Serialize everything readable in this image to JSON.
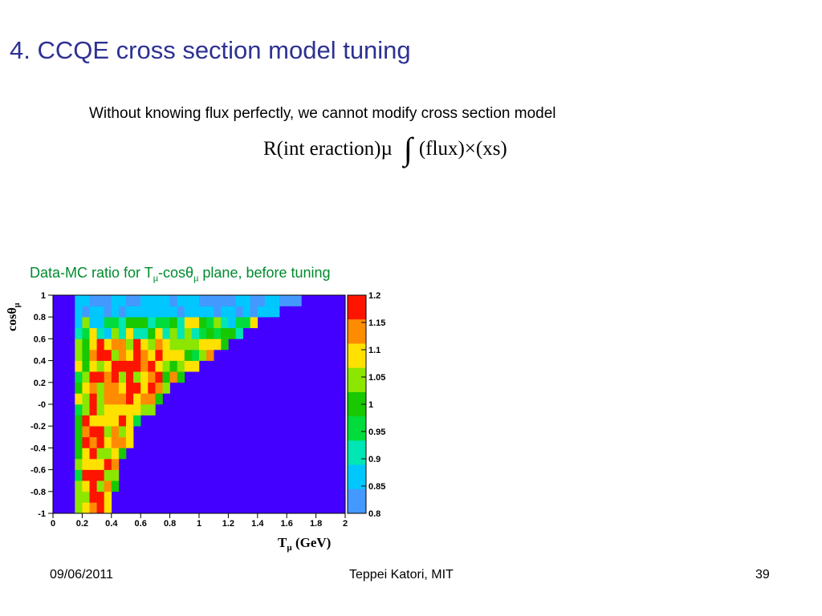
{
  "slide": {
    "title": "4. CCQE cross section model tuning",
    "intro": "Without knowing flux perfectly, we cannot modify cross section model",
    "formula": {
      "left": "R(int eraction)µ",
      "integral": "∫",
      "right": "(flux)×(xs)"
    },
    "caption": {
      "prefix": "Data-MC ratio for T",
      "sub1": "µ",
      "mid": "-cosθ",
      "sub2": "µ",
      "suffix": " plane, before tuning"
    }
  },
  "footer": {
    "date": "09/06/2011",
    "author": "Teppei Katori, MIT",
    "page": "39"
  },
  "colors": {
    "title": "#2e3192",
    "caption": "#008b2e",
    "background_fill": "#4400ff"
  },
  "chart_data": {
    "type": "heatmap",
    "xlabel": "T",
    "xlabel_sub": "µ",
    "xlabel_unit": " (GeV)",
    "ylabel": "cosθ",
    "ylabel_sub": "µ",
    "xlim": [
      0,
      2
    ],
    "ylim": [
      -1,
      1
    ],
    "x_ticks": [
      "0",
      "0.2",
      "0.4",
      "0.6",
      "0.8",
      "1",
      "1.2",
      "1.4",
      "1.6",
      "1.8",
      "2"
    ],
    "x_tick_values": [
      0,
      0.2,
      0.4,
      0.6,
      0.8,
      1.0,
      1.2,
      1.4,
      1.6,
      1.8,
      2.0
    ],
    "y_ticks": [
      "1",
      "0.8",
      "0.6",
      "0.4",
      "0.2",
      "-0",
      "-0.2",
      "-0.4",
      "-0.6",
      "-0.8",
      "-1"
    ],
    "y_tick_values": [
      1,
      0.8,
      0.6,
      0.4,
      0.2,
      0,
      -0.2,
      -0.4,
      -0.6,
      -0.8,
      -1
    ],
    "colorbar": {
      "range": [
        0.8,
        1.2
      ],
      "ticks": [
        "1.2",
        "1.15",
        "1.1",
        "1.05",
        "1",
        "0.95",
        "0.9",
        "0.85",
        "0.8"
      ],
      "tick_values": [
        1.2,
        1.15,
        1.1,
        1.05,
        1.0,
        0.95,
        0.9,
        0.85,
        0.8
      ],
      "color_stops": [
        {
          "value": 0.8,
          "color": "#4499ff"
        },
        {
          "value": 0.85,
          "color": "#00c8ff"
        },
        {
          "value": 0.9,
          "color": "#00e6b4"
        },
        {
          "value": 0.95,
          "color": "#00dc3c"
        },
        {
          "value": 1.0,
          "color": "#18c800"
        },
        {
          "value": 1.05,
          "color": "#8ce600"
        },
        {
          "value": 1.1,
          "color": "#ffe100"
        },
        {
          "value": 1.15,
          "color": "#ff8c00"
        },
        {
          "value": 1.2,
          "color": "#ff1400"
        }
      ]
    },
    "bins": {
      "nx": 40,
      "ny": 20
    },
    "filled_region": "cells between T≈0.15 GeV and a curved edge from T≈0.45 GeV at cosθ=-1 to T≈1.75 GeV at cosθ=1; ratio values mostly 1.1–1.2 near the low-T edge, lighter blue (0.8–0.85) at cosθ≈1",
    "empty_fill_color": "#4400ff"
  }
}
